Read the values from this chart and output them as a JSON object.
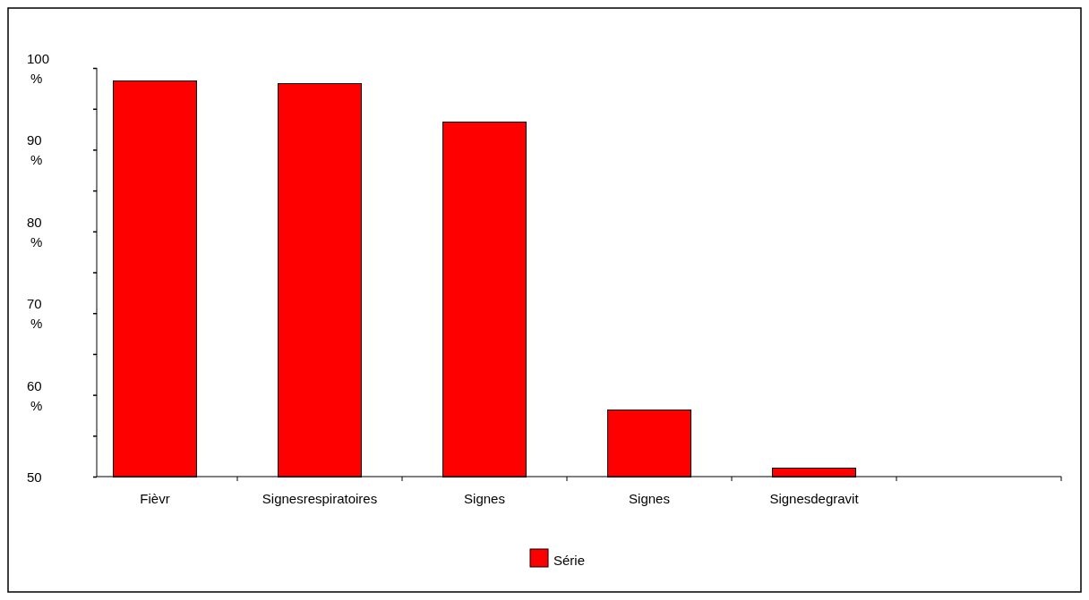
{
  "chart_data": {
    "type": "bar",
    "categories": [
      "Fièvr",
      "Signesrespiratoires",
      "Signes",
      "Signes",
      "Signesdegravit",
      null
    ],
    "series": [
      {
        "name": "Série",
        "color": "#ff0000",
        "values": [
          98.4,
          98.1,
          93.4,
          58.1,
          51.0,
          null
        ]
      }
    ],
    "ylim": [
      50,
      100
    ],
    "yticks": [
      {
        "value": 50,
        "label": "50"
      },
      {
        "value": 55,
        "label": null
      },
      {
        "value": 60,
        "label": "60 %"
      },
      {
        "value": 65,
        "label": null
      },
      {
        "value": 70,
        "label": "70 %"
      },
      {
        "value": 75,
        "label": null
      },
      {
        "value": 80,
        "label": "80 %"
      },
      {
        "value": 85,
        "label": null
      },
      {
        "value": 90,
        "label": "90 %"
      },
      {
        "value": 95,
        "label": null
      },
      {
        "value": 100,
        "label": "100 %"
      }
    ],
    "grid": false,
    "legend": "bottom"
  }
}
